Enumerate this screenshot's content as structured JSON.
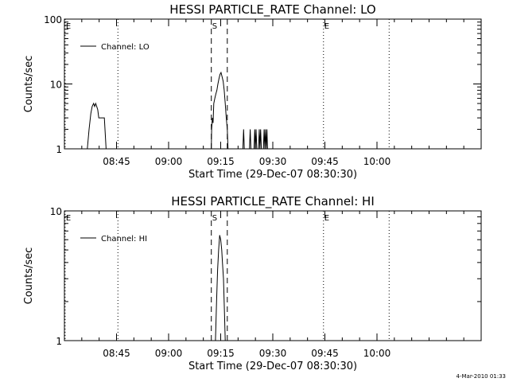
{
  "footer_date": "4-Mar-2010 01:33",
  "chart_data": [
    {
      "type": "line",
      "title": "HESSI PARTICLE_RATE Channel: LO",
      "xlabel": "Start Time (29-Dec-07 08:30:30)",
      "ylabel": "Counts/sec",
      "yscale": "log",
      "ylim": [
        1,
        100
      ],
      "yticks": [
        {
          "value": 1,
          "label": "1"
        },
        {
          "value": 10,
          "label": "10"
        },
        {
          "value": 100,
          "label": "100"
        }
      ],
      "xlim": [
        510,
        630
      ],
      "xticks": [
        {
          "value": 525,
          "label": "08:45"
        },
        {
          "value": 540,
          "label": "09:00"
        },
        {
          "value": 555,
          "label": "09:15"
        },
        {
          "value": 570,
          "label": "09:30"
        },
        {
          "value": 585,
          "label": "09:45"
        },
        {
          "value": 600,
          "label": "10:00"
        }
      ],
      "legend": {
        "entries": [
          "Channel: LO"
        ],
        "position": "top-left"
      },
      "markers": [
        {
          "x": 510.2,
          "label": "E",
          "style": "dotted"
        },
        {
          "x": 525.4,
          "label": "",
          "style": "dotted"
        },
        {
          "x": 552.3,
          "label": "S",
          "style": "dashed"
        },
        {
          "x": 556.9,
          "label": "",
          "style": "dashed"
        },
        {
          "x": 584.6,
          "label": "E",
          "style": "dotted"
        },
        {
          "x": 603.5,
          "label": "",
          "style": "dotted"
        }
      ],
      "series": [
        {
          "name": "Channel: LO",
          "segments": [
            [
              [
                516.6,
                1
              ],
              [
                517.1,
                2
              ],
              [
                517.6,
                3.5
              ],
              [
                518.0,
                4.5
              ],
              [
                518.4,
                5
              ],
              [
                518.7,
                4.5
              ],
              [
                519.0,
                5
              ],
              [
                519.3,
                4.5
              ],
              [
                519.6,
                4
              ],
              [
                519.9,
                3
              ],
              [
                520.2,
                3
              ],
              [
                520.6,
                3
              ],
              [
                521.0,
                3
              ],
              [
                521.5,
                3
              ],
              [
                522.0,
                1
              ]
            ],
            [
              [
                552.3,
                1
              ],
              [
                552.4,
                2
              ],
              [
                552.6,
                3
              ],
              [
                552.8,
                2.5
              ],
              [
                553.0,
                5
              ],
              [
                553.3,
                6
              ],
              [
                553.6,
                7
              ],
              [
                553.9,
                8
              ],
              [
                554.2,
                10
              ],
              [
                554.5,
                12
              ],
              [
                554.8,
                14
              ],
              [
                555.1,
                15
              ],
              [
                555.4,
                13
              ],
              [
                555.7,
                11
              ],
              [
                556.0,
                8
              ],
              [
                556.3,
                5
              ],
              [
                556.6,
                3
              ],
              [
                556.9,
                2
              ],
              [
                557.1,
                1
              ]
            ],
            [
              [
                561.4,
                1
              ],
              [
                561.6,
                2
              ],
              [
                561.8,
                1
              ]
            ],
            [
              [
                563.3,
                1
              ],
              [
                563.5,
                2
              ],
              [
                563.7,
                1
              ]
            ],
            [
              [
                564.6,
                1
              ],
              [
                564.8,
                2
              ],
              [
                565.0,
                1
              ],
              [
                565.2,
                2
              ],
              [
                565.4,
                1
              ]
            ],
            [
              [
                565.9,
                1
              ],
              [
                566.1,
                2
              ],
              [
                566.3,
                1
              ],
              [
                566.5,
                2
              ],
              [
                566.7,
                1
              ]
            ],
            [
              [
                567.3,
                1
              ],
              [
                567.5,
                2
              ],
              [
                567.7,
                1
              ],
              [
                567.9,
                2
              ],
              [
                568.1,
                1
              ],
              [
                568.3,
                2
              ],
              [
                568.5,
                1
              ]
            ]
          ]
        }
      ]
    },
    {
      "type": "line",
      "title": "HESSI PARTICLE_RATE Channel: HI",
      "xlabel": "Start Time (29-Dec-07 08:30:30)",
      "ylabel": "Counts/sec",
      "yscale": "log",
      "ylim": [
        1,
        10
      ],
      "yticks": [
        {
          "value": 1,
          "label": "1"
        },
        {
          "value": 10,
          "label": "10"
        }
      ],
      "xlim": [
        510,
        630
      ],
      "xticks": [
        {
          "value": 525,
          "label": "08:45"
        },
        {
          "value": 540,
          "label": "09:00"
        },
        {
          "value": 555,
          "label": "09:15"
        },
        {
          "value": 570,
          "label": "09:30"
        },
        {
          "value": 585,
          "label": "09:45"
        },
        {
          "value": 600,
          "label": "10:00"
        }
      ],
      "legend": {
        "entries": [
          "Channel: HI"
        ],
        "position": "top-left"
      },
      "markers": [
        {
          "x": 510.2,
          "label": "E",
          "style": "dotted"
        },
        {
          "x": 525.4,
          "label": "",
          "style": "dotted"
        },
        {
          "x": 552.3,
          "label": "S",
          "style": "dashed"
        },
        {
          "x": 556.9,
          "label": "",
          "style": "dashed"
        },
        {
          "x": 584.6,
          "label": "E",
          "style": "dotted"
        },
        {
          "x": 603.5,
          "label": "",
          "style": "dotted"
        }
      ],
      "series": [
        {
          "name": "Channel: HI",
          "segments": [
            [
              [
                553.5,
                1
              ],
              [
                553.8,
                2
              ],
              [
                554.1,
                3.5
              ],
              [
                554.4,
                5
              ],
              [
                554.7,
                6.5
              ],
              [
                555.0,
                6
              ],
              [
                555.3,
                5
              ],
              [
                555.5,
                4
              ],
              [
                555.8,
                3
              ],
              [
                556.1,
                1.6
              ],
              [
                556.3,
                1
              ]
            ]
          ]
        }
      ]
    }
  ]
}
